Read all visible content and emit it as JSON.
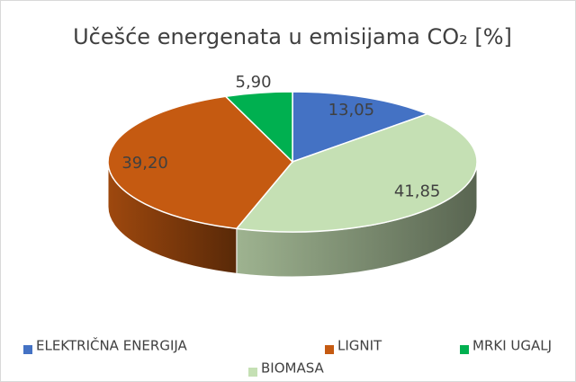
{
  "chart_data": {
    "type": "pie",
    "title": "Učešće energenata u emisijama CO₂ [%]",
    "categories": [
      "ELEKTRIČNA ENERGIJA",
      "BIOMASA",
      "LIGNIT",
      "MRKI UGALJ"
    ],
    "values": [
      13.05,
      41.85,
      39.2,
      5.9
    ],
    "value_labels": [
      "13,05",
      "41,85",
      "39,20",
      "5,90"
    ],
    "colors": [
      "#4472c4",
      "#c5e0b4",
      "#c55a11",
      "#00b050"
    ],
    "legend": "bottom"
  }
}
